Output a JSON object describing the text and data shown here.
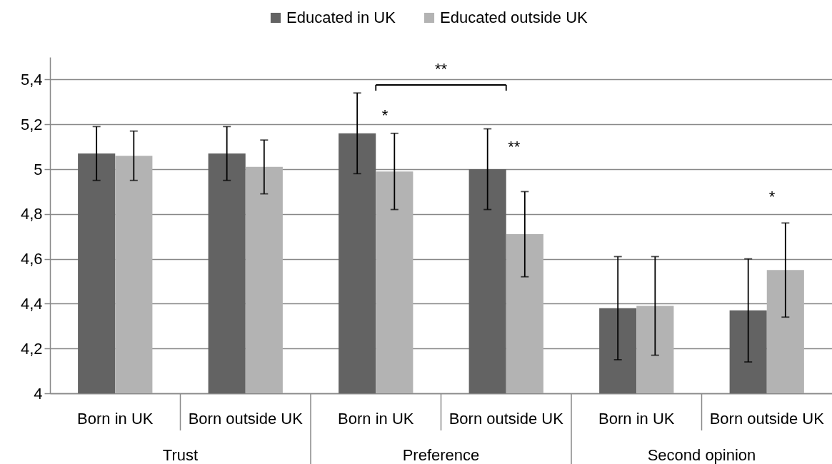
{
  "chart_data": {
    "type": "bar",
    "categories": [
      "Born in UK",
      "Born outside UK",
      "Born in UK",
      "Born outside UK",
      "Born in UK",
      "Born outside UK"
    ],
    "series": [
      {
        "name": "Educated in UK",
        "color": "#636363",
        "values": [
          5.07,
          5.07,
          5.16,
          5.0,
          4.38,
          4.37
        ],
        "errors": [
          0.12,
          0.12,
          0.18,
          0.18,
          0.23,
          0.23
        ]
      },
      {
        "name": "Educated outside UK",
        "color": "#b3b3b3",
        "values": [
          5.06,
          5.01,
          4.99,
          4.71,
          4.39,
          4.55
        ],
        "errors": [
          0.11,
          0.12,
          0.17,
          0.19,
          0.22,
          0.21
        ]
      }
    ],
    "ylim": [
      4,
      5.5
    ],
    "yticks": [
      4,
      {
        "value": 4.2,
        "label": "4,2"
      },
      {
        "value": 4.4,
        "label": "4,4"
      },
      {
        "value": 4.6,
        "label": "4,6"
      },
      {
        "value": 4.8,
        "label": "4,8"
      },
      5,
      {
        "value": 5.2,
        "label": "5,2"
      },
      {
        "value": 5.4,
        "label": "5,4"
      }
    ],
    "grid": "y",
    "legend": "top",
    "annotations": [
      "Trust",
      "Preference",
      "Second opinion",
      "**",
      "*",
      "**",
      "*"
    ]
  }
}
